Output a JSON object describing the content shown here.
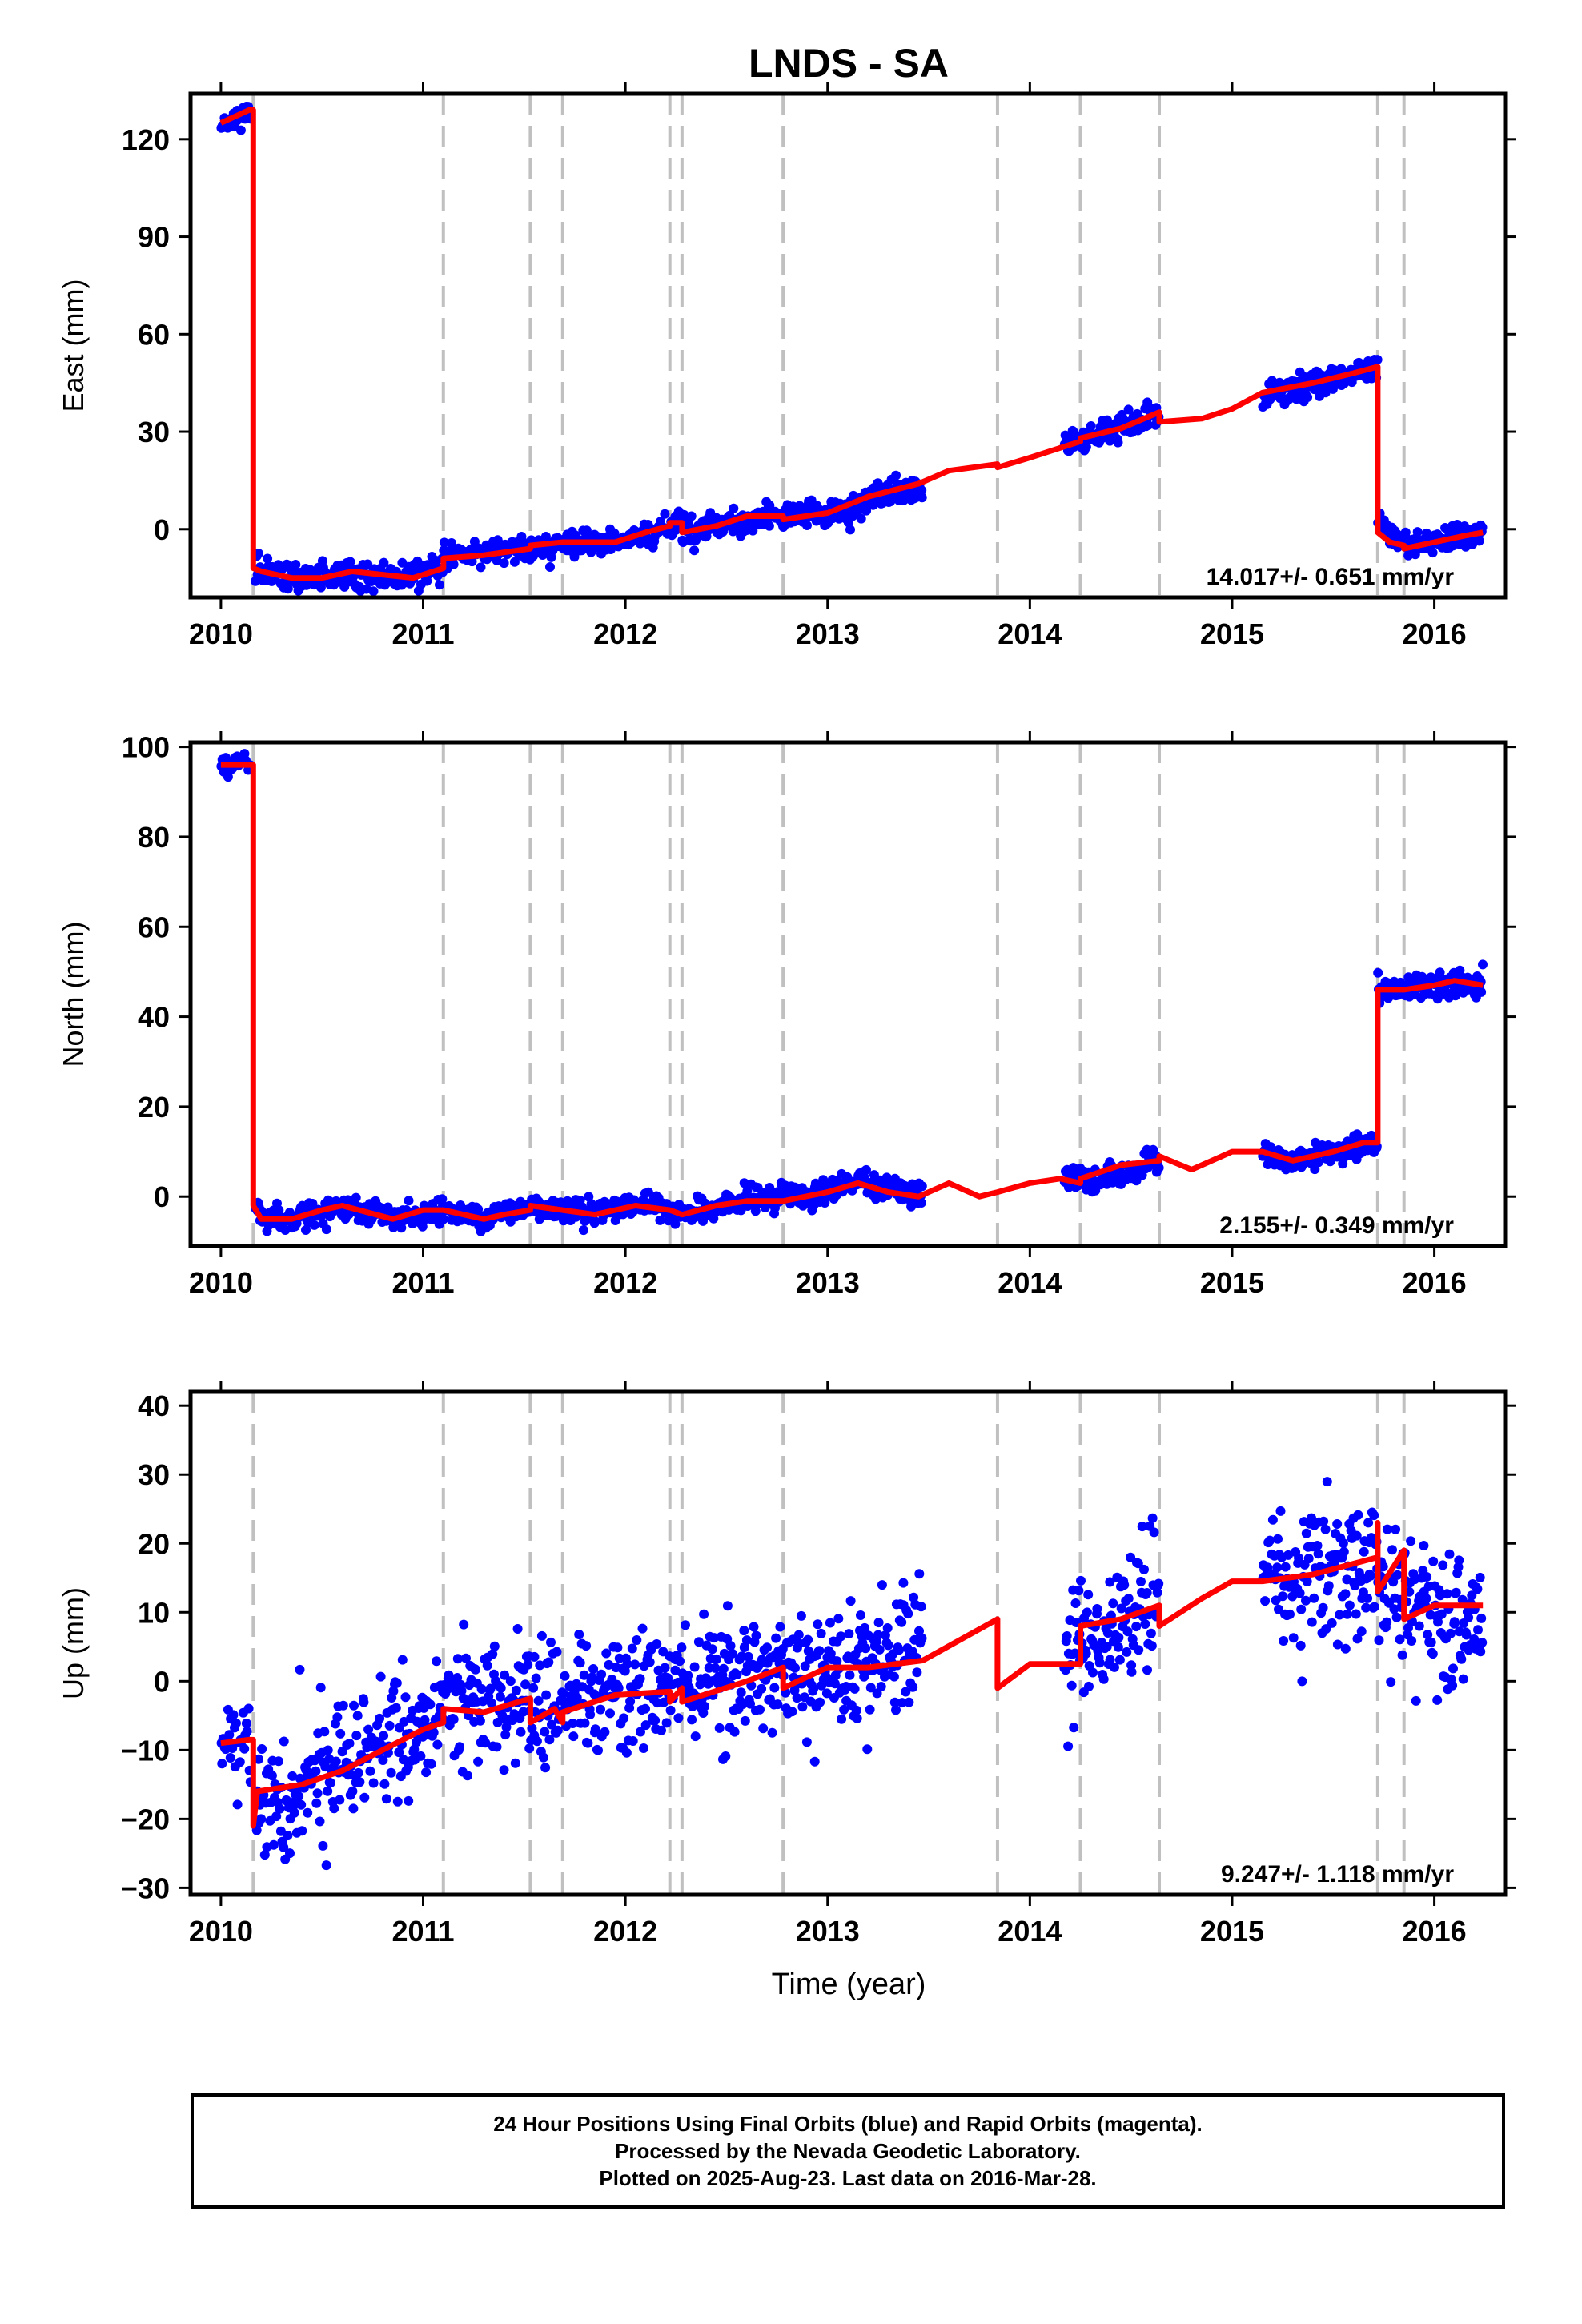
{
  "title": "LNDS - SA",
  "xlabel": "Time (year)",
  "colors": {
    "points": "#0000ff",
    "model": "#ff0000",
    "offsets": "#c0c0c0",
    "frame": "#000000"
  },
  "footer": {
    "line1": "24 Hour Positions Using Final Orbits (blue) and Rapid Orbits (magenta).",
    "line2": "Processed by the Nevada Geodetic Laboratory.",
    "line3": "Plotted on 2025-Aug-23. Last data on 2016-Mar-28."
  },
  "offset_epochs": [
    2010.16,
    2011.1,
    2011.53,
    2011.69,
    2012.22,
    2012.28,
    2012.78,
    2013.84,
    2014.25,
    2014.64,
    2015.72,
    2015.85
  ],
  "chart_data": [
    {
      "type": "scatter",
      "panel": "east",
      "ylabel": "East (mm)",
      "xlim": [
        2009.85,
        2016.35
      ],
      "ylim": [
        -21,
        134
      ],
      "xticks": [
        2010,
        2011,
        2012,
        2013,
        2014,
        2015,
        2016
      ],
      "yticks": [
        0,
        30,
        60,
        90,
        120
      ],
      "rate_label": "14.017+/- 0.651 mm/yr",
      "model_path": [
        [
          2010.0,
          125
        ],
        [
          2010.14,
          129
        ],
        [
          2010.16,
          129
        ],
        [
          2010.16,
          -12
        ],
        [
          2010.2,
          -13
        ],
        [
          2010.35,
          -15
        ],
        [
          2010.5,
          -15
        ],
        [
          2010.65,
          -13
        ],
        [
          2010.8,
          -14
        ],
        [
          2010.95,
          -15
        ],
        [
          2011.1,
          -12
        ],
        [
          2011.1,
          -9
        ],
        [
          2011.3,
          -8
        ],
        [
          2011.53,
          -6
        ],
        [
          2011.53,
          -5
        ],
        [
          2011.69,
          -4
        ],
        [
          2011.69,
          -4
        ],
        [
          2011.95,
          -4
        ],
        [
          2012.1,
          -1
        ],
        [
          2012.22,
          1
        ],
        [
          2012.22,
          2
        ],
        [
          2012.28,
          2
        ],
        [
          2012.28,
          -1
        ],
        [
          2012.45,
          1
        ],
        [
          2012.6,
          4
        ],
        [
          2012.78,
          4
        ],
        [
          2012.78,
          3
        ],
        [
          2013.0,
          5
        ],
        [
          2013.2,
          10
        ],
        [
          2013.45,
          14
        ],
        [
          2013.6,
          18
        ],
        [
          2013.84,
          20
        ],
        [
          2013.84,
          19
        ],
        [
          2014.0,
          22
        ],
        [
          2014.15,
          25
        ],
        [
          2014.25,
          27
        ],
        [
          2014.25,
          28
        ],
        [
          2014.45,
          31
        ],
        [
          2014.64,
          36
        ],
        [
          2014.64,
          33
        ],
        [
          2014.85,
          34
        ],
        [
          2015.0,
          37
        ],
        [
          2015.15,
          42
        ],
        [
          2015.4,
          45
        ],
        [
          2015.6,
          48
        ],
        [
          2015.72,
          50
        ],
        [
          2015.72,
          -1
        ],
        [
          2015.78,
          -4
        ],
        [
          2015.85,
          -5
        ],
        [
          2015.85,
          -6
        ],
        [
          2016.0,
          -4
        ],
        [
          2016.15,
          -2
        ],
        [
          2016.24,
          -1
        ]
      ],
      "series": [
        {
          "from": 2010.0,
          "to": 2010.15,
          "knots": [
            [
              2010.0,
              125
            ],
            [
              2010.15,
              128
            ]
          ],
          "sd": 1.8,
          "n": 28,
          "seed": 11
        },
        {
          "from": 2010.17,
          "to": 2011.1,
          "knots": [
            [
              2010.17,
              -12
            ],
            [
              2010.4,
              -15
            ],
            [
              2010.6,
              -14
            ],
            [
              2010.8,
              -15
            ],
            [
              2011.1,
              -12
            ]
          ],
          "sd": 2.0,
          "n": 210,
          "seed": 12
        },
        {
          "from": 2011.1,
          "to": 2012.28,
          "knots": [
            [
              2011.1,
              -9
            ],
            [
              2011.5,
              -6
            ],
            [
              2011.7,
              -4
            ],
            [
              2011.95,
              -4
            ],
            [
              2012.28,
              2
            ]
          ],
          "sd": 1.9,
          "n": 270,
          "seed": 13
        },
        {
          "from": 2012.28,
          "to": 2012.78,
          "knots": [
            [
              2012.28,
              -1
            ],
            [
              2012.5,
              2
            ],
            [
              2012.78,
              4
            ]
          ],
          "sd": 1.9,
          "n": 120,
          "seed": 14
        },
        {
          "from": 2012.78,
          "to": 2013.47,
          "knots": [
            [
              2012.78,
              3
            ],
            [
              2013.0,
              5
            ],
            [
              2013.47,
              14
            ]
          ],
          "sd": 2.1,
          "n": 170,
          "seed": 15
        },
        {
          "from": 2014.17,
          "to": 2014.64,
          "knots": [
            [
              2014.17,
              26
            ],
            [
              2014.4,
              30
            ],
            [
              2014.64,
              36
            ]
          ],
          "sd": 1.9,
          "n": 110,
          "seed": 16
        },
        {
          "from": 2015.15,
          "to": 2015.72,
          "knots": [
            [
              2015.15,
              41
            ],
            [
              2015.4,
              45
            ],
            [
              2015.72,
              50
            ]
          ],
          "sd": 1.9,
          "n": 140,
          "seed": 17
        },
        {
          "from": 2015.72,
          "to": 2016.24,
          "knots": [
            [
              2015.72,
              4
            ],
            [
              2015.78,
              -3
            ],
            [
              2015.9,
              -5
            ],
            [
              2016.24,
              -1
            ]
          ],
          "sd": 1.9,
          "n": 125,
          "seed": 18
        }
      ]
    },
    {
      "type": "scatter",
      "panel": "north",
      "ylabel": "North (mm)",
      "xlim": [
        2009.85,
        2016.35
      ],
      "ylim": [
        -11,
        101
      ],
      "xticks": [
        2010,
        2011,
        2012,
        2013,
        2014,
        2015,
        2016
      ],
      "yticks": [
        0,
        20,
        40,
        60,
        80,
        100
      ],
      "rate_label": "2.155+/- 0.349 mm/yr",
      "model_path": [
        [
          2010.0,
          96
        ],
        [
          2010.15,
          96
        ],
        [
          2010.16,
          96
        ],
        [
          2010.16,
          -2
        ],
        [
          2010.2,
          -5
        ],
        [
          2010.35,
          -5
        ],
        [
          2010.5,
          -3
        ],
        [
          2010.6,
          -2
        ],
        [
          2010.85,
          -5
        ],
        [
          2011.0,
          -3
        ],
        [
          2011.1,
          -3
        ],
        [
          2011.3,
          -5
        ],
        [
          2011.4,
          -4
        ],
        [
          2011.53,
          -3
        ],
        [
          2011.53,
          -2
        ],
        [
          2011.69,
          -3
        ],
        [
          2011.85,
          -4
        ],
        [
          2012.05,
          -2
        ],
        [
          2012.22,
          -3
        ],
        [
          2012.28,
          -4
        ],
        [
          2012.45,
          -2
        ],
        [
          2012.6,
          -1
        ],
        [
          2012.78,
          -1
        ],
        [
          2013.0,
          1
        ],
        [
          2013.15,
          3
        ],
        [
          2013.3,
          1
        ],
        [
          2013.45,
          0
        ],
        [
          2013.6,
          3
        ],
        [
          2013.75,
          0
        ],
        [
          2013.84,
          1
        ],
        [
          2014.0,
          3
        ],
        [
          2014.15,
          4
        ],
        [
          2014.25,
          3
        ],
        [
          2014.25,
          4
        ],
        [
          2014.45,
          7
        ],
        [
          2014.64,
          8
        ],
        [
          2014.64,
          9
        ],
        [
          2014.8,
          6
        ],
        [
          2015.0,
          10
        ],
        [
          2015.15,
          10
        ],
        [
          2015.3,
          8
        ],
        [
          2015.5,
          10
        ],
        [
          2015.65,
          12
        ],
        [
          2015.72,
          12
        ],
        [
          2015.72,
          46
        ],
        [
          2015.85,
          46
        ],
        [
          2016.0,
          47
        ],
        [
          2016.1,
          48
        ],
        [
          2016.24,
          47
        ]
      ],
      "series": [
        {
          "from": 2010.0,
          "to": 2010.15,
          "knots": [
            [
              2010.0,
              96
            ],
            [
              2010.15,
              97
            ]
          ],
          "sd": 1.2,
          "n": 28,
          "seed": 21
        },
        {
          "from": 2010.17,
          "to": 2011.1,
          "knots": [
            [
              2010.17,
              -3
            ],
            [
              2010.35,
              -5
            ],
            [
              2010.6,
              -2
            ],
            [
              2010.85,
              -5
            ],
            [
              2011.1,
              -3
            ]
          ],
          "sd": 1.3,
          "n": 210,
          "seed": 22
        },
        {
          "from": 2011.1,
          "to": 2012.28,
          "knots": [
            [
              2011.1,
              -3
            ],
            [
              2011.3,
              -5
            ],
            [
              2011.53,
              -2
            ],
            [
              2011.85,
              -4
            ],
            [
              2012.05,
              -2
            ],
            [
              2012.28,
              -4
            ]
          ],
          "sd": 1.3,
          "n": 270,
          "seed": 23
        },
        {
          "from": 2012.28,
          "to": 2013.47,
          "knots": [
            [
              2012.28,
              -4
            ],
            [
              2012.6,
              -1
            ],
            [
              2013.0,
              1
            ],
            [
              2013.15,
              3
            ],
            [
              2013.47,
              0
            ]
          ],
          "sd": 1.3,
          "n": 290,
          "seed": 24
        },
        {
          "from": 2014.17,
          "to": 2014.64,
          "knots": [
            [
              2014.17,
              4
            ],
            [
              2014.3,
              3
            ],
            [
              2014.64,
              8
            ]
          ],
          "sd": 1.3,
          "n": 110,
          "seed": 25
        },
        {
          "from": 2015.15,
          "to": 2015.72,
          "knots": [
            [
              2015.15,
              10
            ],
            [
              2015.3,
              8
            ],
            [
              2015.72,
              12
            ]
          ],
          "sd": 1.3,
          "n": 140,
          "seed": 26
        },
        {
          "from": 2015.72,
          "to": 2016.24,
          "knots": [
            [
              2015.72,
              46
            ],
            [
              2016.0,
              47
            ],
            [
              2016.24,
              47
            ]
          ],
          "sd": 1.4,
          "n": 125,
          "seed": 27
        }
      ]
    },
    {
      "type": "scatter",
      "panel": "up",
      "ylabel": "Up (mm)",
      "xlim": [
        2009.85,
        2016.35
      ],
      "ylim": [
        -31,
        42
      ],
      "xticks": [
        2010,
        2011,
        2012,
        2013,
        2014,
        2015,
        2016
      ],
      "yticks": [
        -30,
        -20,
        -10,
        0,
        10,
        20,
        30,
        40
      ],
      "rate_label": "9.247+/- 1.118 mm/yr",
      "model_path": [
        [
          2010.0,
          -9
        ],
        [
          2010.14,
          -8.5
        ],
        [
          2010.16,
          -8.5
        ],
        [
          2010.16,
          -21
        ],
        [
          2010.18,
          -16
        ],
        [
          2010.4,
          -15
        ],
        [
          2010.6,
          -13
        ],
        [
          2010.8,
          -10
        ],
        [
          2011.0,
          -7
        ],
        [
          2011.1,
          -6
        ],
        [
          2011.1,
          -4
        ],
        [
          2011.3,
          -4.5
        ],
        [
          2011.53,
          -2.5
        ],
        [
          2011.53,
          -6
        ],
        [
          2011.65,
          -4
        ],
        [
          2011.69,
          -6
        ],
        [
          2011.69,
          -4.5
        ],
        [
          2011.95,
          -2
        ],
        [
          2012.22,
          -1.5
        ],
        [
          2012.22,
          -3
        ],
        [
          2012.28,
          -1
        ],
        [
          2012.28,
          -3
        ],
        [
          2012.6,
          0
        ],
        [
          2012.78,
          2
        ],
        [
          2012.78,
          -1
        ],
        [
          2013.0,
          2
        ],
        [
          2013.2,
          2
        ],
        [
          2013.47,
          3
        ],
        [
          2013.84,
          9
        ],
        [
          2013.84,
          -1
        ],
        [
          2014.0,
          2.5
        ],
        [
          2014.25,
          2.5
        ],
        [
          2014.25,
          8
        ],
        [
          2014.45,
          9
        ],
        [
          2014.64,
          11
        ],
        [
          2014.64,
          8
        ],
        [
          2014.85,
          12
        ],
        [
          2015.0,
          14.5
        ],
        [
          2015.15,
          14.5
        ],
        [
          2015.4,
          15.5
        ],
        [
          2015.72,
          18
        ],
        [
          2015.72,
          23
        ],
        [
          2015.72,
          13
        ],
        [
          2015.85,
          19
        ],
        [
          2015.85,
          9
        ],
        [
          2016.0,
          11
        ],
        [
          2016.24,
          11
        ]
      ],
      "series": [
        {
          "from": 2010.0,
          "to": 2010.15,
          "knots": [
            [
              2010.0,
              -9
            ],
            [
              2010.15,
              -8
            ]
          ],
          "sd": 4.0,
          "n": 28,
          "seed": 31
        },
        {
          "from": 2010.17,
          "to": 2011.1,
          "knots": [
            [
              2010.17,
              -17
            ],
            [
              2010.5,
              -14
            ],
            [
              2010.8,
              -9
            ],
            [
              2011.1,
              -5
            ]
          ],
          "sd": 4.5,
          "n": 210,
          "seed": 32
        },
        {
          "from": 2011.1,
          "to": 2012.28,
          "knots": [
            [
              2011.1,
              -3
            ],
            [
              2011.5,
              -3
            ],
            [
              2011.7,
              -4
            ],
            [
              2012.28,
              -1
            ]
          ],
          "sd": 4.6,
          "n": 270,
          "seed": 33
        },
        {
          "from": 2012.28,
          "to": 2013.47,
          "knots": [
            [
              2012.28,
              -1
            ],
            [
              2012.78,
              1
            ],
            [
              2013.0,
              2
            ],
            [
              2013.47,
              4
            ]
          ],
          "sd": 4.6,
          "n": 290,
          "seed": 34
        },
        {
          "from": 2014.17,
          "to": 2014.64,
          "knots": [
            [
              2014.17,
              3
            ],
            [
              2014.4,
              8
            ],
            [
              2014.64,
              13
            ]
          ],
          "sd": 5.2,
          "n": 110,
          "seed": 35
        },
        {
          "from": 2015.15,
          "to": 2015.72,
          "knots": [
            [
              2015.15,
              15
            ],
            [
              2015.5,
              16
            ],
            [
              2015.72,
              18
            ]
          ],
          "sd": 4.8,
          "n": 140,
          "seed": 36
        },
        {
          "from": 2015.72,
          "to": 2016.24,
          "knots": [
            [
              2015.72,
              14
            ],
            [
              2015.85,
              12
            ],
            [
              2016.0,
              10
            ],
            [
              2016.24,
              11
            ]
          ],
          "sd": 5.2,
          "n": 125,
          "seed": 37
        }
      ]
    }
  ]
}
